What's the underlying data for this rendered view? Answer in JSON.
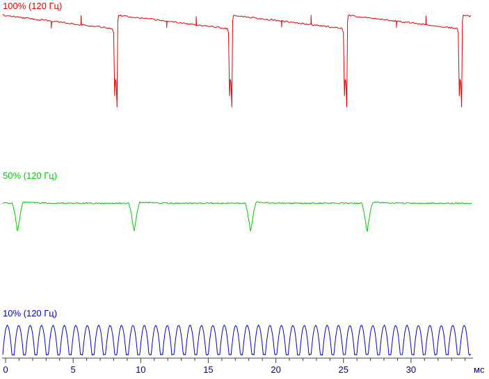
{
  "chart_data": {
    "type": "line",
    "xlabel": "мс",
    "x_unit": "ms",
    "x_ticks": [
      0,
      5,
      10,
      15,
      20,
      25,
      30
    ],
    "x_minor_tick_step_ms": 1,
    "x_range_ms": [
      0,
      34
    ],
    "grid": false,
    "style": {
      "axis_color": "#404040",
      "tick_text_color": "#000080",
      "background": "#ffffff"
    },
    "series": [
      {
        "name": "brightness-100",
        "label": "100% (120 Гц)",
        "brightness_percent": 100,
        "frequency_hz": 120,
        "color": "#e00000",
        "waveform": "high plateau with slow decay and one deep narrow dip per period",
        "period_ms": 8.5,
        "dip_times_ms": [
          8.15,
          16.65,
          25.15,
          33.65
        ],
        "levels": {
          "cycle_start": 0.96,
          "before_dip": 0.77,
          "dip_bottom": 0.04
        },
        "artifact_phases": {
          "down_tick": 0.44,
          "up_spike": 0.71
        }
      },
      {
        "name": "brightness-50",
        "label": "50% (120 Гц)",
        "brightness_percent": 50,
        "frequency_hz": 120,
        "color": "#00c800",
        "waveform": "flat plateau with one narrow V-shaped dip per period",
        "period_ms": 8.62,
        "dip_times_ms": [
          0.9,
          9.52,
          18.14,
          26.76
        ],
        "dip_halfwidth_ms": 0.42,
        "levels": {
          "plateau": 0.88,
          "dip_bottom": 0.05
        }
      },
      {
        "name": "brightness-10",
        "label": "10% (120 Гц)",
        "brightness_percent": 10,
        "frequency_hz": 120,
        "color": "#0000c8",
        "waveform": "dense train of narrow rounded pulses",
        "pulse_period_ms": 0.845,
        "pulse_duty": 0.8,
        "levels": {
          "baseline": 0.04,
          "peak": 0.95
        }
      }
    ]
  }
}
